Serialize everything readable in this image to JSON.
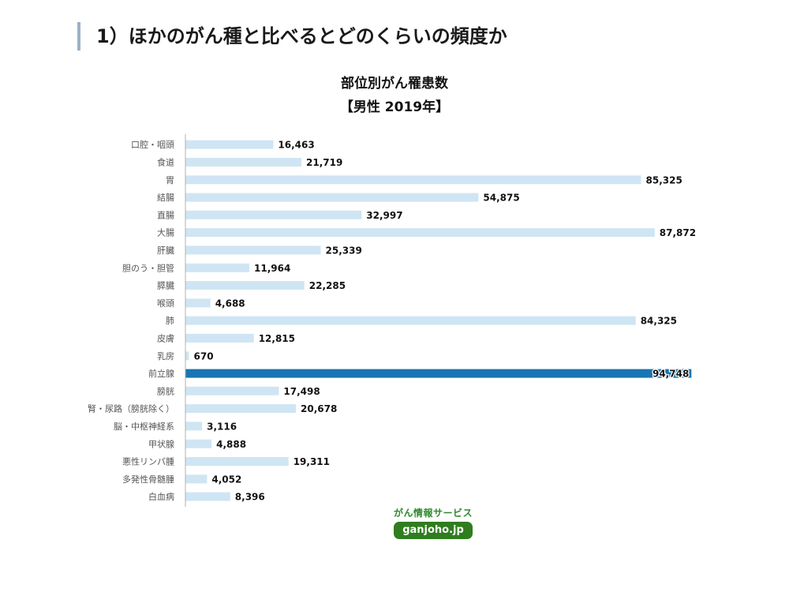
{
  "page": {
    "heading": "1）ほかのがん種と比べるとどのくらいの頻度か"
  },
  "chart_data": {
    "type": "bar",
    "orientation": "horizontal",
    "title": "部位別がん罹患数",
    "subtitle": "【男性 2019年】",
    "categories": [
      "口腔・咽頭",
      "食道",
      "胃",
      "結腸",
      "直腸",
      "大腸",
      "肝臓",
      "胆のう・胆管",
      "膵臓",
      "喉頭",
      "肺",
      "皮膚",
      "乳房",
      "前立腺",
      "膀胱",
      "腎・尿路（膀胱除く）",
      "脳・中枢神経系",
      "甲状腺",
      "悪性リンパ腫",
      "多発性骨髄腫",
      "白血病"
    ],
    "values": [
      16463,
      21719,
      85325,
      54875,
      32997,
      87872,
      25339,
      11964,
      22285,
      4688,
      84325,
      12815,
      670,
      94748,
      17498,
      20678,
      3116,
      4888,
      19311,
      4052,
      8396
    ],
    "value_labels": [
      "16,463",
      "21,719",
      "85,325",
      "54,875",
      "32,997",
      "87,872",
      "25,339",
      "11,964",
      "22,285",
      "4,688",
      "84,325",
      "12,815",
      "670",
      "94,748",
      "17,498",
      "20,678",
      "3,116",
      "4,888",
      "19,311",
      "4,052",
      "8,396"
    ],
    "highlight": "前立腺",
    "xlim": [
      0,
      95000
    ],
    "grid": false,
    "colors": {
      "bar": "#cfe5f3",
      "highlight": "#1776b3",
      "axis": "#b0b0b0"
    }
  },
  "logo": {
    "top_text": "がん情報サービス",
    "pill_text": "ganjoho.jp",
    "colors": {
      "text": "#2e8a2e",
      "pill": "#2f7d1f"
    }
  }
}
